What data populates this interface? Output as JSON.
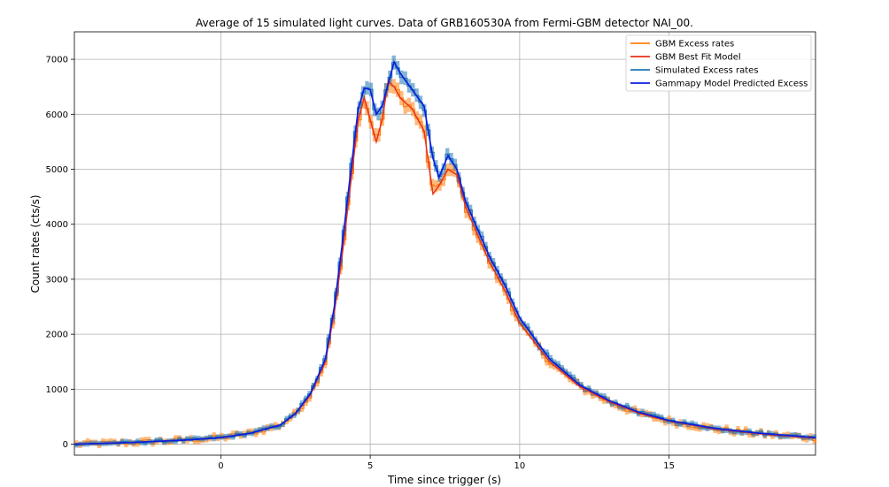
{
  "chart_data": {
    "type": "line",
    "title": "Average of 15 simulated light curves. Data of GRB160530A from Fermi-GBM detector NAI_00.",
    "xlabel": "Time since trigger (s)",
    "ylabel": "Count rates (cts/s)",
    "xlim": [
      -4.9,
      19.9
    ],
    "ylim": [
      -200,
      7500
    ],
    "xticks": [
      0,
      5,
      10,
      15
    ],
    "yticks": [
      0,
      1000,
      2000,
      3000,
      4000,
      5000,
      6000,
      7000
    ],
    "grid": true,
    "legend_position": "top-right",
    "legend_labels": [
      "GBM Excess rates",
      "GBM Best Fit Model",
      "Simulated Excess rates",
      "Gammapy Model Predicted Excess"
    ],
    "colors": {
      "gbm_excess": "#ff7f0e",
      "gbm_model": "#e8311d",
      "sim_excess": "#1f77b4",
      "gammapy_model": "#0b1ee0"
    },
    "curve_points": {
      "t": [
        -4.9,
        -3.0,
        -1.0,
        0.0,
        1.0,
        2.0,
        2.5,
        3.0,
        3.5,
        3.8,
        4.1,
        4.4,
        4.6,
        4.8,
        5.0,
        5.2,
        5.4,
        5.6,
        5.8,
        6.0,
        6.4,
        6.8,
        7.1,
        7.3,
        7.6,
        7.9,
        8.2,
        8.6,
        9.0,
        9.5,
        10.0,
        11.0,
        12.0,
        13.0,
        14.0,
        15.0,
        16.5,
        18.0,
        19.9
      ],
      "gbm_model": [
        0,
        30,
        80,
        120,
        200,
        350,
        550,
        900,
        1500,
        2400,
        3600,
        5000,
        5900,
        6300,
        5900,
        5500,
        5900,
        6600,
        6500,
        6300,
        6100,
        5700,
        4550,
        4700,
        5000,
        4900,
        4300,
        3800,
        3300,
        2800,
        2200,
        1500,
        1050,
        770,
        560,
        420,
        280,
        190,
        110
      ],
      "gammapy_model": [
        0,
        30,
        80,
        120,
        200,
        350,
        560,
        920,
        1550,
        2500,
        3800,
        5200,
        6100,
        6480,
        6450,
        6000,
        6150,
        6550,
        6950,
        6750,
        6450,
        6150,
        5200,
        4850,
        5250,
        5000,
        4400,
        3900,
        3400,
        2900,
        2300,
        1550,
        1080,
        790,
        580,
        430,
        290,
        200,
        120
      ]
    }
  }
}
